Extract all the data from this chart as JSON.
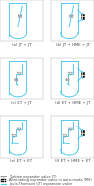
{
  "subplot_labels": [
    [
      "(a) JT + JT",
      "(b) JT + HME + JT"
    ],
    [
      "(c) ET + JT",
      "(d) ET + HME + JT"
    ],
    [
      "(e) ET + ET",
      "(f) ET + HME + ET"
    ]
  ],
  "curve_color": "#55CCEE",
  "hme_color": "#333333",
  "symbol_color": "#999999",
  "bg_color": "#ffffff",
  "text_color": "#444444",
  "label_fontsize": 2.8,
  "legend_items": [
    "Turbine expander valve (T)",
    "Alternating expander valve in auto-mode (MV)",
    "Joule-Thomson (JT) expansion valve"
  ]
}
